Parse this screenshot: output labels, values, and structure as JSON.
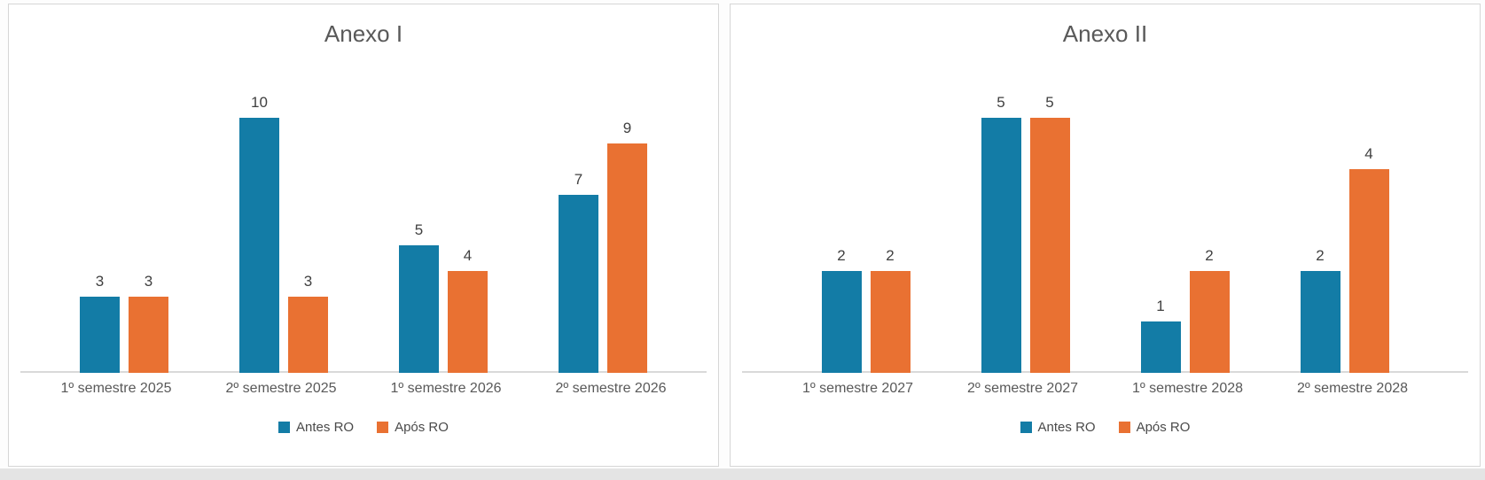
{
  "page": {
    "background": "#FDFDFD",
    "panel_background": "#FFFFFF",
    "panel_border_color": "#D6D6D6",
    "bottom_strip_color": "#E4E4E4"
  },
  "colors": {
    "series_antes_ro": "#137CA6",
    "series_apos_ro": "#E97132",
    "title_text": "#595959",
    "axis_text": "#595959",
    "data_label_text": "#404040",
    "axis_line": "#D9D9D9"
  },
  "chart_data": [
    {
      "type": "bar",
      "title": "Anexo I",
      "categories": [
        "1º semestre 2025",
        "2º semestre 2025",
        "1º semestre 2026",
        "2º semestre 2026"
      ],
      "series": [
        {
          "name": "Antes RO",
          "color": "#137CA6",
          "values": [
            3,
            10,
            5,
            7
          ]
        },
        {
          "name": "Após RO",
          "color": "#E97132",
          "values": [
            3,
            3,
            4,
            9
          ]
        }
      ],
      "ylim": [
        0,
        12
      ],
      "grid": false,
      "data_labels": true,
      "legend_position": "bottom",
      "legend": [
        "Antes RO",
        "Após RO"
      ]
    },
    {
      "type": "bar",
      "title": "Anexo II",
      "categories": [
        "1º semestre 2027",
        "2º semestre 2027",
        "1º semestre 2028",
        "2º semestre 2028"
      ],
      "series": [
        {
          "name": "Antes RO",
          "color": "#137CA6",
          "values": [
            2,
            5,
            1,
            2
          ]
        },
        {
          "name": "Após RO",
          "color": "#E97132",
          "values": [
            2,
            5,
            2,
            4
          ]
        }
      ],
      "ylim": [
        0,
        6
      ],
      "grid": false,
      "data_labels": true,
      "legend_position": "bottom",
      "legend": [
        "Antes RO",
        "Após RO"
      ]
    }
  ]
}
